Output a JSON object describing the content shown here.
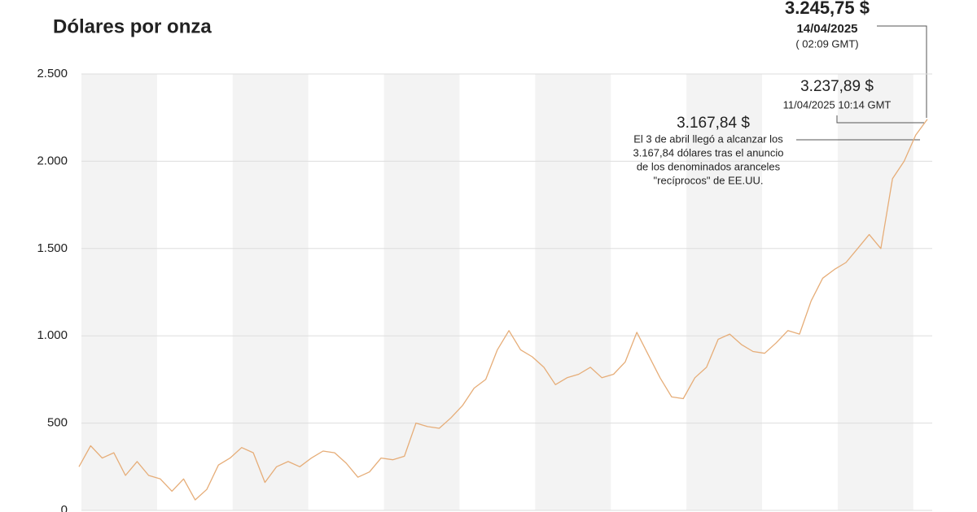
{
  "chart_data": {
    "type": "line",
    "title": "Dólares por onza",
    "categories": [
      null,
      null,
      null,
      null,
      null,
      null,
      null,
      null,
      null,
      null,
      null,
      null,
      null,
      null,
      null,
      null,
      null,
      null,
      null,
      null,
      null,
      null,
      null,
      null,
      null,
      null,
      null,
      null,
      null,
      null,
      null,
      null,
      null,
      null,
      null,
      null,
      null,
      null,
      null,
      null,
      null,
      null,
      null,
      null,
      null,
      null,
      null,
      null,
      null,
      null,
      null,
      null,
      null,
      null,
      null,
      null,
      null,
      null,
      null,
      null,
      null,
      null,
      null,
      null,
      null,
      null,
      null,
      null,
      null,
      null,
      null,
      null,
      null,
      null
    ],
    "series": [
      {
        "color": "#e6ad78",
        "values": [
          250,
          370,
          300,
          330,
          200,
          280,
          200,
          180,
          110,
          180,
          60,
          120,
          260,
          300,
          360,
          330,
          160,
          250,
          280,
          250,
          300,
          340,
          330,
          270,
          190,
          220,
          300,
          290,
          310,
          500,
          480,
          470,
          530,
          600,
          700,
          750,
          920,
          1030,
          920,
          880,
          820,
          720,
          760,
          780,
          820,
          760,
          780,
          850,
          1020,
          890,
          760,
          650,
          640,
          760,
          820,
          980,
          1010,
          950,
          910,
          900,
          960,
          1030,
          1010,
          1200,
          1330,
          1380,
          1420,
          1500,
          1580,
          1500,
          1900,
          2000,
          2150,
          2240
        ]
      }
    ],
    "ylim": [
      0,
      2500
    ],
    "yticks": [
      0,
      500,
      {
        "value": 1000,
        "label": "1.000"
      },
      {
        "value": 1500,
        "label": "1.500"
      },
      {
        "value": 2000,
        "label": "2.000"
      },
      {
        "value": 2500,
        "label": "2.500"
      }
    ],
    "grid": true,
    "annotations": [
      {
        "value": "3.245,75 $",
        "date": "14/04/2025",
        "time": "( 02:09 GMT)"
      },
      {
        "value": "3.237,89 $",
        "date": "11/04/2025 10:14 GMT"
      },
      {
        "value": "3.167,84 $",
        "text": [
          "El 3 de abril llegó a alcanzar los",
          "3.167,84 dólares tras el anuncio",
          "de los denominados aranceles",
          "\"recíprocos\" de EE.UU."
        ]
      }
    ]
  }
}
